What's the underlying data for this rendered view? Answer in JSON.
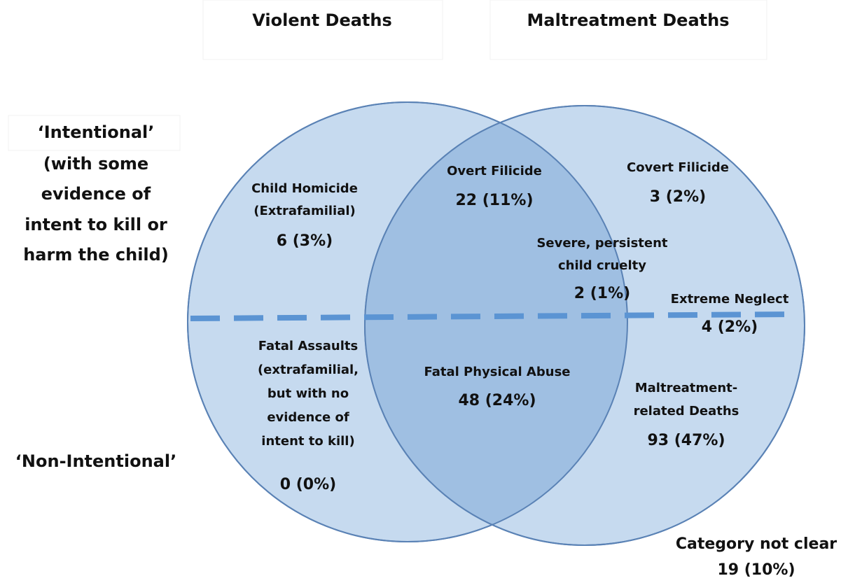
{
  "headings": [
    "Violent Deaths",
    "Maltreatment Deaths"
  ],
  "intentional": [
    "‘Intentional’",
    "(with some",
    "evidence of",
    "intent to kill or",
    "harm the child)"
  ],
  "non_intentional": "‘Non-Intentional’",
  "regions": [
    {
      "label": [
        "Child Homicide",
        "(Extrafamilial)"
      ],
      "count": "6 (3%)"
    },
    {
      "label": [
        "Overt Filicide"
      ],
      "count": "22 (11%)"
    },
    {
      "label": [
        "Covert Filicide"
      ],
      "count": "3 (2%)"
    },
    {
      "label": [
        "Severe, persistent",
        "child cruelty"
      ],
      "count": "2 (1%)"
    },
    {
      "label": [
        "Extreme Neglect"
      ],
      "count": "4 (2%)"
    },
    {
      "label": [
        "Fatal Assaults",
        "(extrafamilial,",
        "but with no",
        "evidence of",
        "intent to kill)"
      ],
      "count": "0 (0%)"
    },
    {
      "label": [
        "Fatal Physical Abuse"
      ],
      "count": "48 (24%)"
    },
    {
      "label": [
        "Maltreatment-",
        "related Deaths"
      ],
      "count": "93 (47%)"
    }
  ],
  "outside": {
    "label": "Category not clear",
    "count": "19 (10%)"
  }
}
